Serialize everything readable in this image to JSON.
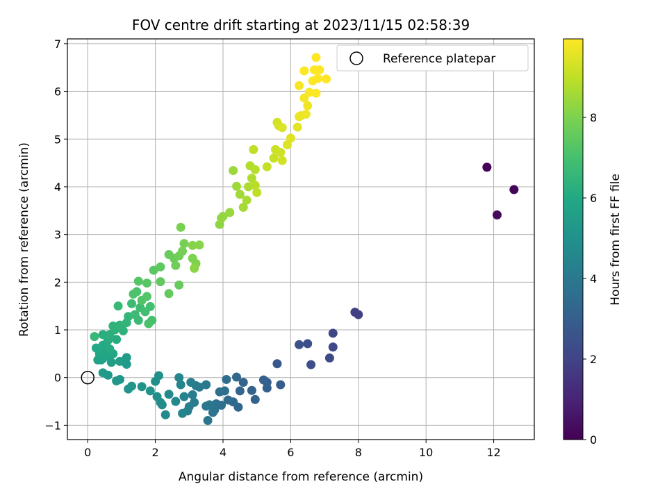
{
  "chart_data": {
    "type": "scatter",
    "title": "FOV centre drift starting at 2023/11/15 02:58:39",
    "xlabel": "Angular distance from reference (arcmin)",
    "ylabel": "Rotation from reference (arcmin)",
    "xlim": [
      -0.6,
      13.2
    ],
    "ylim": [
      -1.3,
      7.1
    ],
    "xticks": [
      0,
      2,
      4,
      6,
      8,
      10,
      12
    ],
    "yticks": [
      -1,
      0,
      1,
      2,
      3,
      4,
      5,
      6,
      7
    ],
    "grid": true,
    "legend": {
      "position": "top-right",
      "entries": [
        "Reference platepar"
      ]
    },
    "reference": {
      "name": "Reference platepar",
      "x": 0,
      "y": 0
    },
    "colorbar": {
      "label": "Hours from first FF file",
      "colormap": "viridis",
      "range": [
        0,
        9.95
      ],
      "ticks": [
        0,
        2,
        4,
        6,
        8
      ]
    },
    "points": [
      [
        11.8,
        4.41,
        0.05
      ],
      [
        12.6,
        3.94,
        0.15
      ],
      [
        12.1,
        3.41,
        0.25
      ],
      [
        7.9,
        1.37,
        1.8
      ],
      [
        8.0,
        1.32,
        1.85
      ],
      [
        7.25,
        0.93,
        2.1
      ],
      [
        7.25,
        0.64,
        2.15
      ],
      [
        7.15,
        0.41,
        2.2
      ],
      [
        6.6,
        0.27,
        2.35
      ],
      [
        6.5,
        0.71,
        2.45
      ],
      [
        6.25,
        0.69,
        2.5
      ],
      [
        5.6,
        0.29,
        2.7
      ],
      [
        5.7,
        -0.15,
        2.9
      ],
      [
        5.3,
        -0.1,
        2.95
      ],
      [
        5.3,
        -0.22,
        3.0
      ],
      [
        5.2,
        -0.05,
        3.05
      ],
      [
        4.95,
        -0.46,
        3.1
      ],
      [
        4.85,
        -0.27,
        3.15
      ],
      [
        4.6,
        -0.1,
        3.2
      ],
      [
        4.5,
        -0.28,
        3.25
      ],
      [
        4.45,
        -0.62,
        3.3
      ],
      [
        4.4,
        0.01,
        3.35
      ],
      [
        4.3,
        -0.51,
        3.4
      ],
      [
        4.15,
        -0.47,
        3.45
      ],
      [
        4.1,
        -0.04,
        3.5
      ],
      [
        4.05,
        -0.28,
        3.55
      ],
      [
        3.95,
        -0.58,
        3.6
      ],
      [
        3.9,
        -0.3,
        3.65
      ],
      [
        3.8,
        -0.55,
        3.7
      ],
      [
        3.75,
        -0.68,
        3.75
      ],
      [
        3.7,
        -0.73,
        3.8
      ],
      [
        3.6,
        -0.57,
        3.85
      ],
      [
        3.55,
        -0.9,
        3.9
      ],
      [
        3.5,
        -0.6,
        3.95
      ],
      [
        3.5,
        -0.15,
        4.0
      ],
      [
        3.3,
        -0.2,
        4.05
      ],
      [
        3.2,
        -0.17,
        4.1
      ],
      [
        3.15,
        -0.52,
        4.15
      ],
      [
        3.1,
        -0.36,
        4.2
      ],
      [
        3.05,
        -0.1,
        4.25
      ],
      [
        3.0,
        -0.61,
        4.3
      ],
      [
        2.95,
        -0.7,
        4.35
      ],
      [
        2.85,
        -0.4,
        4.4
      ],
      [
        2.8,
        -0.75,
        4.45
      ],
      [
        2.75,
        -0.15,
        4.5
      ],
      [
        2.7,
        0.0,
        4.55
      ],
      [
        2.6,
        -0.5,
        4.6
      ],
      [
        2.4,
        -0.35,
        4.65
      ],
      [
        2.3,
        -0.78,
        4.7
      ],
      [
        2.2,
        -0.57,
        4.75
      ],
      [
        2.15,
        -0.52,
        4.8
      ],
      [
        2.05,
        -0.4,
        4.85
      ],
      [
        2.1,
        0.04,
        4.9
      ],
      [
        2.0,
        -0.08,
        4.95
      ],
      [
        1.85,
        -0.28,
        5.0
      ],
      [
        1.6,
        -0.19,
        5.05
      ],
      [
        1.3,
        -0.18,
        5.1
      ],
      [
        1.2,
        -0.24,
        5.15
      ],
      [
        0.95,
        -0.04,
        5.2
      ],
      [
        0.85,
        -0.07,
        5.25
      ],
      [
        0.6,
        0.05,
        5.3
      ],
      [
        0.45,
        0.1,
        5.35
      ],
      [
        1.15,
        0.28,
        5.4
      ],
      [
        1.15,
        0.42,
        5.45
      ],
      [
        0.95,
        0.34,
        5.5
      ],
      [
        0.7,
        0.32,
        5.55
      ],
      [
        0.4,
        0.37,
        5.6
      ],
      [
        0.3,
        0.37,
        5.65
      ],
      [
        0.45,
        0.4,
        5.7
      ],
      [
        0.6,
        0.45,
        5.75
      ],
      [
        0.75,
        0.5,
        5.8
      ],
      [
        0.5,
        0.55,
        5.85
      ],
      [
        0.35,
        0.5,
        5.9
      ],
      [
        0.25,
        0.62,
        5.95
      ],
      [
        0.45,
        0.68,
        6.0
      ],
      [
        0.65,
        0.6,
        6.05
      ],
      [
        0.85,
        0.8,
        6.1
      ],
      [
        0.6,
        0.78,
        6.15
      ],
      [
        0.45,
        0.9,
        6.2
      ],
      [
        0.65,
        0.9,
        6.25
      ],
      [
        0.8,
        1.0,
        6.3
      ],
      [
        1.05,
        0.98,
        6.35
      ],
      [
        0.75,
        1.08,
        6.4
      ],
      [
        0.95,
        1.1,
        6.45
      ],
      [
        1.15,
        1.15,
        6.5
      ],
      [
        1.2,
        1.28,
        6.55
      ],
      [
        0.2,
        0.86,
        6.6
      ],
      [
        0.9,
        1.5,
        6.65
      ],
      [
        1.5,
        1.2,
        6.7
      ],
      [
        1.4,
        1.32,
        6.75
      ],
      [
        1.3,
        1.55,
        6.8
      ],
      [
        1.55,
        1.47,
        6.85
      ],
      [
        1.7,
        1.38,
        6.9
      ],
      [
        1.85,
        1.49,
        6.95
      ],
      [
        1.9,
        1.2,
        7.0
      ],
      [
        1.8,
        1.13,
        7.05
      ],
      [
        1.45,
        1.8,
        7.1
      ],
      [
        1.35,
        1.75,
        7.15
      ],
      [
        1.6,
        1.62,
        7.2
      ],
      [
        1.75,
        1.7,
        7.25
      ],
      [
        1.5,
        2.02,
        7.3
      ],
      [
        1.75,
        1.98,
        7.35
      ],
      [
        1.95,
        2.25,
        7.4
      ],
      [
        2.15,
        2.32,
        7.45
      ],
      [
        2.15,
        2.01,
        7.5
      ],
      [
        2.4,
        1.76,
        7.55
      ],
      [
        2.7,
        1.94,
        7.6
      ],
      [
        2.4,
        2.58,
        7.65
      ],
      [
        2.55,
        2.5,
        7.7
      ],
      [
        2.6,
        2.35,
        7.75
      ],
      [
        2.7,
        2.55,
        7.8
      ],
      [
        2.8,
        2.65,
        7.85
      ],
      [
        2.85,
        2.81,
        7.9
      ],
      [
        2.75,
        3.15,
        7.95
      ],
      [
        3.1,
        2.5,
        8.0
      ],
      [
        3.2,
        2.39,
        8.05
      ],
      [
        3.1,
        2.77,
        8.1
      ],
      [
        3.3,
        2.78,
        8.15
      ],
      [
        3.15,
        2.29,
        8.2
      ],
      [
        3.9,
        3.21,
        8.25
      ],
      [
        4.0,
        3.38,
        8.3
      ],
      [
        3.95,
        3.34,
        8.35
      ],
      [
        4.2,
        3.46,
        8.4
      ],
      [
        4.3,
        4.34,
        8.45
      ],
      [
        4.4,
        4.01,
        8.5
      ],
      [
        4.5,
        3.84,
        8.55
      ],
      [
        4.6,
        3.57,
        8.6
      ],
      [
        4.7,
        3.72,
        8.65
      ],
      [
        4.75,
        4.0,
        8.7
      ],
      [
        4.85,
        4.18,
        8.75
      ],
      [
        4.8,
        4.44,
        8.8
      ],
      [
        4.95,
        4.36,
        8.85
      ],
      [
        4.95,
        4.03,
        8.9
      ],
      [
        5.0,
        3.88,
        8.95
      ],
      [
        4.9,
        4.78,
        9.0
      ],
      [
        5.3,
        4.42,
        9.05
      ],
      [
        5.5,
        4.6,
        9.1
      ],
      [
        5.55,
        4.78,
        9.15
      ],
      [
        5.7,
        4.72,
        9.2
      ],
      [
        5.75,
        4.55,
        9.25
      ],
      [
        5.6,
        5.35,
        9.3
      ],
      [
        5.65,
        5.28,
        9.35
      ],
      [
        5.75,
        5.24,
        9.4
      ],
      [
        5.9,
        4.88,
        9.45
      ],
      [
        6.0,
        5.02,
        9.5
      ],
      [
        6.2,
        5.25,
        9.55
      ],
      [
        6.3,
        5.49,
        9.6
      ],
      [
        6.25,
        5.47,
        9.65
      ],
      [
        6.45,
        5.52,
        9.7
      ],
      [
        6.5,
        5.7,
        9.75
      ],
      [
        6.4,
        5.86,
        9.8
      ],
      [
        6.25,
        6.12,
        9.85
      ],
      [
        6.55,
        5.98,
        9.9
      ],
      [
        6.75,
        5.96,
        9.93
      ],
      [
        6.65,
        6.22,
        9.95
      ],
      [
        6.4,
        6.43,
        9.95
      ],
      [
        6.8,
        6.27,
        9.95
      ],
      [
        6.7,
        6.45,
        9.95
      ],
      [
        6.85,
        6.45,
        9.95
      ],
      [
        7.05,
        6.26,
        9.95
      ],
      [
        6.75,
        6.71,
        9.95
      ]
    ]
  }
}
